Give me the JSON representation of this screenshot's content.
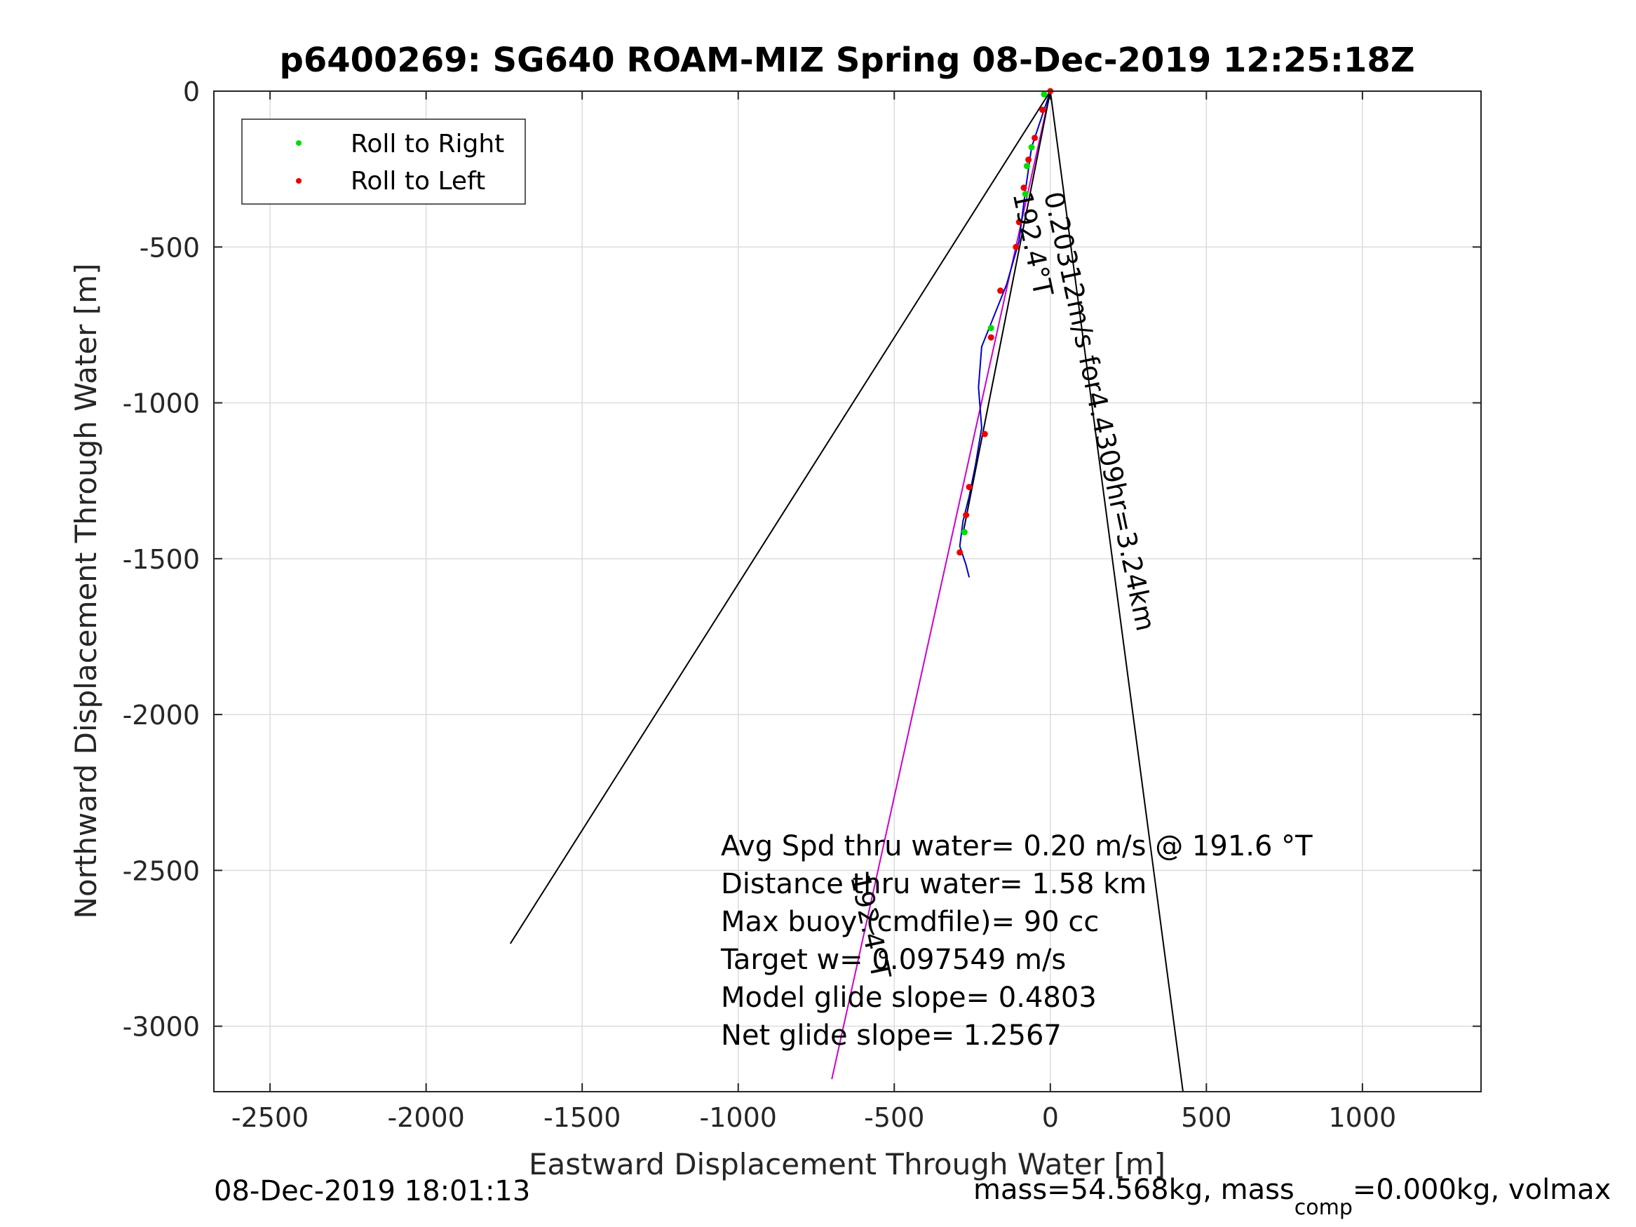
{
  "chart_data": {
    "type": "line",
    "title": "p6400269: SG640 ROAM-MIZ Spring 08-Dec-2019 12:25:18Z",
    "xlabel": "Eastward Displacement Through Water [m]",
    "ylabel": "Northward Displacement Through Water [m]",
    "xlim": [
      -2680,
      1380
    ],
    "ylim": [
      -3210,
      0
    ],
    "x_ticks": [
      -2500,
      -2000,
      -1500,
      -1000,
      -500,
      0,
      500,
      1000
    ],
    "y_ticks": [
      0,
      -500,
      -1000,
      -1500,
      -2000,
      -2500,
      -3000
    ],
    "grid": true,
    "legend": {
      "position": "top-left",
      "entries": [
        {
          "label": "Roll to Right",
          "color": "#00dd00",
          "marker": "dot"
        },
        {
          "label": "Roll to Left",
          "color": "#ee0000",
          "marker": "dot"
        }
      ]
    },
    "lines": [
      {
        "color": "#000000",
        "points": [
          [
            0,
            0
          ],
          [
            -1730,
            -2735
          ]
        ]
      },
      {
        "color": "#000000",
        "points": [
          [
            0,
            0
          ],
          [
            425,
            -3210
          ]
        ]
      },
      {
        "color": "#cc00cc",
        "points": [
          [
            0,
            0
          ],
          [
            -700,
            -3170
          ]
        ]
      },
      {
        "color": "#0000cc",
        "points": [
          [
            0,
            0
          ],
          [
            -20,
            -60
          ],
          [
            -60,
            -180
          ],
          [
            -80,
            -320
          ],
          [
            -100,
            -480
          ],
          [
            -140,
            -620
          ],
          [
            -180,
            -720
          ],
          [
            -220,
            -820
          ],
          [
            -230,
            -950
          ],
          [
            -220,
            -1080
          ],
          [
            -240,
            -1200
          ],
          [
            -260,
            -1300
          ],
          [
            -280,
            -1380
          ],
          [
            -290,
            -1460
          ],
          [
            -270,
            -1520
          ],
          [
            -260,
            -1560
          ]
        ]
      },
      {
        "color": "#000000",
        "points": [
          [
            0,
            0
          ],
          [
            -280,
            -1420
          ]
        ]
      }
    ],
    "roll_right_points": [
      [
        -20,
        -10
      ],
      [
        -60,
        -180
      ],
      [
        -75,
        -240
      ],
      [
        -80,
        -330
      ],
      [
        -190,
        -760
      ],
      [
        -275,
        -1415
      ]
    ],
    "roll_left_points": [
      [
        0,
        0
      ],
      [
        -25,
        -60
      ],
      [
        -50,
        -150
      ],
      [
        -70,
        -220
      ],
      [
        -85,
        -310
      ],
      [
        -100,
        -420
      ],
      [
        -110,
        -500
      ],
      [
        -160,
        -640
      ],
      [
        -190,
        -790
      ],
      [
        -210,
        -1100
      ],
      [
        -260,
        -1270
      ],
      [
        -270,
        -1360
      ],
      [
        -290,
        -1480
      ]
    ],
    "annotations": [
      {
        "text": "0.20312m/s for4.4309hr=3.24km",
        "x": -20,
        "y": -330,
        "rotation": 78
      },
      {
        "text": "192.4°T",
        "x": -120,
        "y": -330,
        "rotation": 78
      },
      {
        "text": "192.4°T",
        "x": -640,
        "y": -2520,
        "rotation": 78
      }
    ]
  },
  "summary_lines": [
    "Avg Spd thru water=  0.20 m/s @ 191.6 °T",
    "Distance thru water=  1.58 km",
    "Max buoy (cmdfile)= 90 cc",
    "Target w= 0.097549 m/s",
    "Model glide slope= 0.4803",
    "Net glide slope= 1.2567"
  ],
  "footer": {
    "timestamp": "08-Dec-2019 18:01:13",
    "mass_prefix": "mass=54.568kg, mass",
    "mass_sub": "comp",
    "mass_suffix": "=0.000kg, volmax"
  }
}
